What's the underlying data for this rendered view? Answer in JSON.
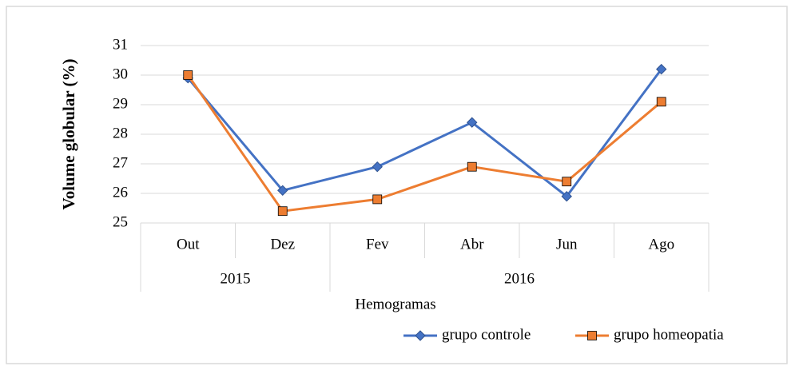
{
  "chart_data": {
    "type": "line",
    "y_label": "Volume globular (%)",
    "x_label": "Hemogramas",
    "category_groups": [
      {
        "name": "2015",
        "categories": [
          "Out",
          "Dez"
        ]
      },
      {
        "name": "2016",
        "categories": [
          "Fev",
          "Abr",
          "Jun",
          "Ago"
        ]
      }
    ],
    "series": [
      {
        "name": "grupo controle",
        "color": "#4472c4",
        "marker": "diamond",
        "values": [
          29.9,
          26.1,
          26.9,
          28.4,
          25.9,
          30.2
        ]
      },
      {
        "name": "grupo homeopatia",
        "color": "#ed7d31",
        "marker": "square",
        "values": [
          30.0,
          25.4,
          25.8,
          26.9,
          26.4,
          29.1
        ]
      }
    ],
    "ylim": [
      25,
      31
    ],
    "yticks": [
      25,
      26,
      27,
      28,
      29,
      30,
      31
    ],
    "grid": true,
    "legend": "bottom-right"
  }
}
